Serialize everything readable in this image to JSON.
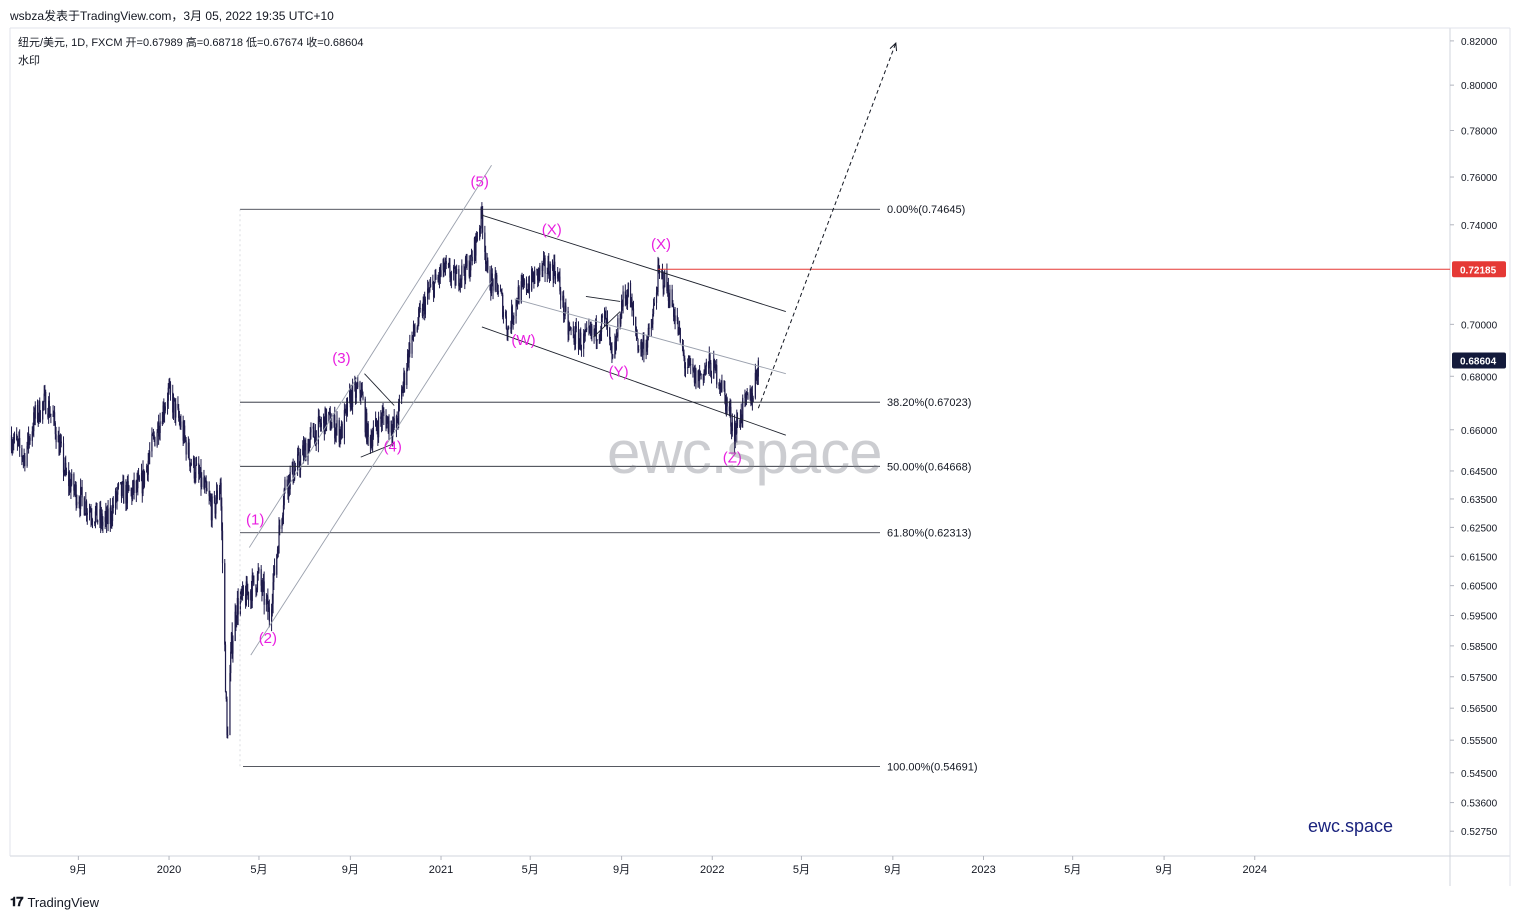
{
  "header": {
    "publish_line": "wsbza发表于TradingView.com，3月 05, 2022 19:35 UTC+10",
    "symbol_line": "纽元/美元, 1D, FXCM  开=0.67989  高=0.68718  低=0.67674  收=0.68604",
    "indicator_label": "水印"
  },
  "footer": {
    "logo_icon": "tradingview-logo-icon",
    "logo_text": "TradingView"
  },
  "watermark": {
    "center_text": "ewc.space",
    "brand_text": "ewc.space"
  },
  "colors": {
    "candles": "#1e1b4b",
    "wave_labels": "#e91ee0",
    "resistance_line": "#e53935",
    "last_price_badge": "#131a3b",
    "fib_lines": "#1e222d",
    "channel_lines": "#1e222d",
    "trend_lines": "#9aa0ad"
  },
  "chart_data": {
    "type": "candlestick",
    "symbol": "纽元/美元",
    "timeframe": "1D",
    "source": "FXCM",
    "ohlc": {
      "open": 0.67989,
      "high": 0.68718,
      "low": 0.67674,
      "close": 0.68604
    },
    "y_axis": {
      "scale": "log",
      "range": [
        0.522,
        0.825
      ],
      "ticks": [
        "0.82000",
        "0.80000",
        "0.78000",
        "0.76000",
        "0.74000",
        "0.70000",
        "0.68000",
        "0.66000",
        "0.64500",
        "0.63500",
        "0.62500",
        "0.61500",
        "0.60500",
        "0.59500",
        "0.58500",
        "0.57500",
        "0.56500",
        "0.55500",
        "0.54500",
        "0.53600",
        "0.52750"
      ]
    },
    "x_axis": {
      "range": [
        "2019-06-01",
        "2024-07-01"
      ],
      "ticks": [
        {
          "date": "2019-09-01",
          "label": "9月"
        },
        {
          "date": "2020-01-01",
          "label": "2020"
        },
        {
          "date": "2020-05-01",
          "label": "5月"
        },
        {
          "date": "2020-09-01",
          "label": "9月"
        },
        {
          "date": "2021-01-01",
          "label": "2021"
        },
        {
          "date": "2021-05-01",
          "label": "5月"
        },
        {
          "date": "2021-09-01",
          "label": "9月"
        },
        {
          "date": "2022-01-01",
          "label": "2022"
        },
        {
          "date": "2022-05-01",
          "label": "5月"
        },
        {
          "date": "2022-09-01",
          "label": "9月"
        },
        {
          "date": "2023-01-01",
          "label": "2023"
        },
        {
          "date": "2023-05-01",
          "label": "5月"
        },
        {
          "date": "2023-09-01",
          "label": "9月"
        },
        {
          "date": "2024-01-01",
          "label": "2024"
        }
      ]
    },
    "price_path": [
      [
        "2019-06-01",
        0.658
      ],
      [
        "2019-06-20",
        0.65
      ],
      [
        "2019-07-05",
        0.665
      ],
      [
        "2019-07-20",
        0.671
      ],
      [
        "2019-08-01",
        0.661
      ],
      [
        "2019-08-15",
        0.643
      ],
      [
        "2019-09-01",
        0.636
      ],
      [
        "2019-09-15",
        0.632
      ],
      [
        "2019-10-01",
        0.627
      ],
      [
        "2019-10-10",
        0.627
      ],
      [
        "2019-10-25",
        0.637
      ],
      [
        "2019-11-10",
        0.637
      ],
      [
        "2019-11-25",
        0.64
      ],
      [
        "2019-12-10",
        0.655
      ],
      [
        "2019-12-31",
        0.674
      ],
      [
        "2020-01-15",
        0.663
      ],
      [
        "2020-01-31",
        0.648
      ],
      [
        "2020-02-15",
        0.64
      ],
      [
        "2020-03-01",
        0.63
      ],
      [
        "2020-03-10",
        0.642
      ],
      [
        "2020-03-19",
        0.555
      ],
      [
        "2020-03-25",
        0.585
      ],
      [
        "2020-04-01",
        0.598
      ],
      [
        "2020-04-15",
        0.602
      ],
      [
        "2020-04-30",
        0.608
      ],
      [
        "2020-05-15",
        0.595
      ],
      [
        "2020-06-05",
        0.64
      ],
      [
        "2020-06-20",
        0.646
      ],
      [
        "2020-07-10",
        0.657
      ],
      [
        "2020-07-31",
        0.664
      ],
      [
        "2020-08-20",
        0.659
      ],
      [
        "2020-09-01",
        0.672
      ],
      [
        "2020-09-15",
        0.675
      ],
      [
        "2020-09-25",
        0.656
      ],
      [
        "2020-10-15",
        0.665
      ],
      [
        "2020-11-01",
        0.66
      ],
      [
        "2020-11-20",
        0.692
      ],
      [
        "2020-12-15",
        0.712
      ],
      [
        "2021-01-05",
        0.722
      ],
      [
        "2021-01-20",
        0.718
      ],
      [
        "2021-02-10",
        0.724
      ],
      [
        "2021-02-25",
        0.744
      ],
      [
        "2021-03-05",
        0.718
      ],
      [
        "2021-03-20",
        0.714
      ],
      [
        "2021-04-01",
        0.698
      ],
      [
        "2021-04-15",
        0.712
      ],
      [
        "2021-05-05",
        0.718
      ],
      [
        "2021-05-20",
        0.722
      ],
      [
        "2021-06-05",
        0.722
      ],
      [
        "2021-06-20",
        0.698
      ],
      [
        "2021-07-10",
        0.693
      ],
      [
        "2021-07-25",
        0.696
      ],
      [
        "2021-08-10",
        0.702
      ],
      [
        "2021-08-20",
        0.684
      ],
      [
        "2021-09-01",
        0.708
      ],
      [
        "2021-09-10",
        0.713
      ],
      [
        "2021-09-25",
        0.69
      ],
      [
        "2021-10-10",
        0.696
      ],
      [
        "2021-10-20",
        0.719
      ],
      [
        "2021-10-28",
        0.718
      ],
      [
        "2021-11-10",
        0.706
      ],
      [
        "2021-11-25",
        0.685
      ],
      [
        "2021-12-10",
        0.679
      ],
      [
        "2021-12-28",
        0.684
      ],
      [
        "2022-01-10",
        0.68
      ],
      [
        "2022-01-25",
        0.665
      ],
      [
        "2022-01-31",
        0.659
      ],
      [
        "2022-02-10",
        0.667
      ],
      [
        "2022-02-25",
        0.674
      ],
      [
        "2022-03-04",
        0.686
      ]
    ],
    "fibonacci": [
      {
        "ratio": "0.00%",
        "label": "0.00%(0.74645)",
        "price": 0.74645
      },
      {
        "ratio": "38.20%",
        "label": "38.20%(0.67023)",
        "price": 0.67023
      },
      {
        "ratio": "50.00%",
        "label": "50.00%(0.64668)",
        "price": 0.64668
      },
      {
        "ratio": "61.80%",
        "label": "61.80%(0.62313)",
        "price": 0.62313
      },
      {
        "ratio": "100.00%",
        "label": "100.00%(0.54691)",
        "price": 0.54691
      }
    ],
    "price_badges": [
      {
        "label": "0.72185",
        "price": 0.72185,
        "kind": "resistance"
      },
      {
        "label": "0.68604",
        "price": 0.68604,
        "kind": "last"
      }
    ],
    "wave_labels": [
      {
        "text": "(1)",
        "date": "2020-04-26",
        "price": 0.626
      },
      {
        "text": "(2)",
        "date": "2020-05-13",
        "price": 0.586
      },
      {
        "text": "(3)",
        "date": "2020-08-20",
        "price": 0.685
      },
      {
        "text": "(4)",
        "date": "2020-10-28",
        "price": 0.652
      },
      {
        "text": "(5)",
        "date": "2021-02-22",
        "price": 0.756
      },
      {
        "text": "(W)",
        "date": "2021-04-22",
        "price": 0.692
      },
      {
        "text": "(X)",
        "date": "2021-05-30",
        "price": 0.736
      },
      {
        "text": "(Y)",
        "date": "2021-08-28",
        "price": 0.68
      },
      {
        "text": "(X)",
        "date": "2021-10-24",
        "price": 0.73
      },
      {
        "text": "(Z)",
        "date": "2022-01-28",
        "price": 0.648
      }
    ],
    "trend_lines": [
      {
        "role": "impulse-channel-upper",
        "from": [
          "2020-04-18",
          0.618
        ],
        "to": [
          "2021-03-10",
          0.765
        ]
      },
      {
        "role": "impulse-channel-lower",
        "from": [
          "2020-04-20",
          0.582
        ],
        "to": [
          "2021-03-10",
          0.717
        ]
      },
      {
        "role": "wave4-triangle-upper",
        "from": [
          "2020-09-20",
          0.681
        ],
        "to": [
          "2020-10-30",
          0.669
        ]
      },
      {
        "role": "wave4-triangle-lower",
        "from": [
          "2020-09-15",
          0.65
        ],
        "to": [
          "2020-10-30",
          0.655
        ]
      },
      {
        "role": "correction-channel-upper",
        "from": [
          "2021-02-25",
          0.744
        ],
        "to": [
          "2022-04-10",
          0.705
        ]
      },
      {
        "role": "correction-channel-middle",
        "from": [
          "2021-04-10",
          0.71
        ],
        "to": [
          "2022-04-10",
          0.681
        ]
      },
      {
        "role": "correction-channel-lower",
        "from": [
          "2021-02-25",
          0.699
        ],
        "to": [
          "2022-04-10",
          0.658
        ]
      },
      {
        "role": "triangle-mini-upper",
        "from": [
          "2021-07-15",
          0.711
        ],
        "to": [
          "2021-08-30",
          0.709
        ]
      },
      {
        "role": "triangle-mini-lower",
        "from": [
          "2021-07-25",
          0.695
        ],
        "to": [
          "2021-08-30",
          0.705
        ]
      }
    ],
    "projection": {
      "style": "dashed",
      "from": [
        "2022-03-04",
        0.668
      ],
      "to": [
        "2022-09-05",
        0.819
      ]
    },
    "resistance_line": {
      "price": 0.72185,
      "from": "2021-10-20"
    }
  }
}
